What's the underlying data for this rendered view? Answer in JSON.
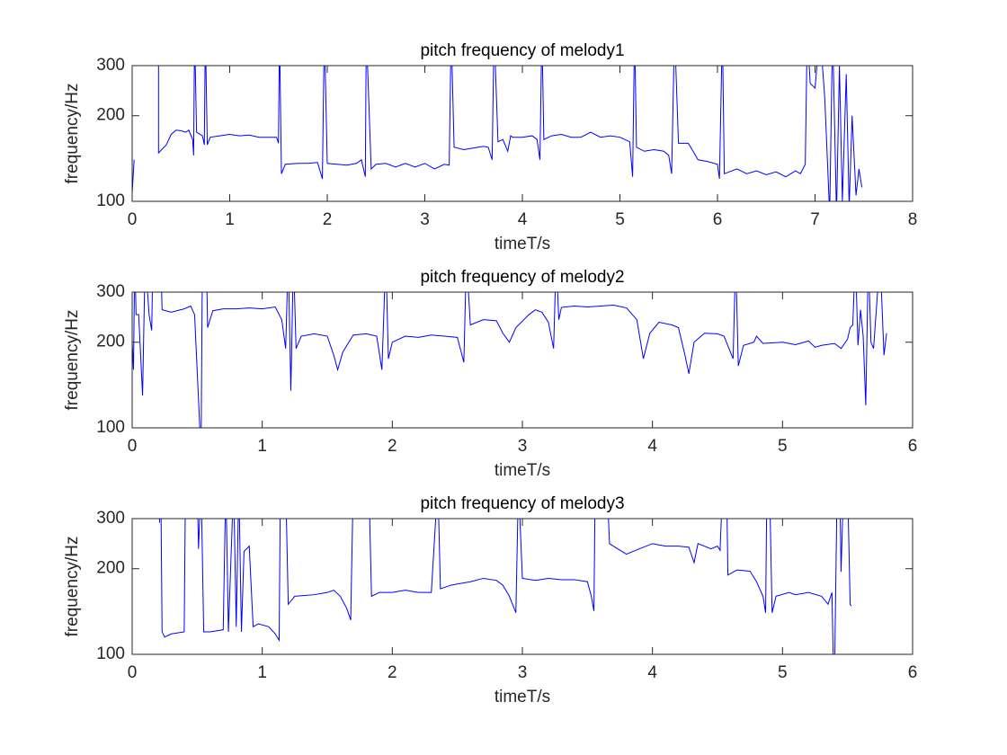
{
  "chart_data": [
    {
      "type": "line",
      "title": "pitch frequency of melody1",
      "x_label": "timeT/s",
      "y_label": "frequency/Hz",
      "xlim": [
        0,
        8
      ],
      "xticks": [
        0,
        1,
        2,
        3,
        4,
        5,
        6,
        7,
        8
      ],
      "ylim": [
        100,
        300
      ],
      "yticks": [
        100,
        200,
        300
      ],
      "yscale": "log",
      "color": "#0000ff",
      "x": [
        0,
        0.02,
        0.1,
        0.27,
        0.27,
        0.35,
        0.4,
        0.45,
        0.5,
        0.55,
        0.58,
        0.62,
        0.63,
        0.64,
        0.66,
        0.72,
        0.74,
        0.75,
        0.77,
        0.8,
        0.9,
        1.0,
        1.1,
        1.2,
        1.3,
        1.4,
        1.48,
        1.5,
        1.51,
        1.53,
        1.57,
        1.7,
        1.8,
        1.9,
        1.95,
        1.97,
        2.0,
        2.1,
        2.2,
        2.3,
        2.35,
        2.39,
        2.4,
        2.45,
        2.5,
        2.6,
        2.7,
        2.8,
        2.9,
        3.0,
        3.1,
        3.2,
        3.25,
        3.27,
        3.3,
        3.4,
        3.5,
        3.6,
        3.65,
        3.69,
        3.71,
        3.75,
        3.8,
        3.85,
        3.88,
        3.9,
        4.0,
        4.1,
        4.15,
        4.18,
        4.2,
        4.22,
        4.3,
        4.4,
        4.5,
        4.6,
        4.7,
        4.8,
        4.9,
        5.0,
        5.1,
        5.13,
        5.15,
        5.17,
        5.25,
        5.35,
        5.45,
        5.5,
        5.53,
        5.56,
        5.6,
        5.7,
        5.75,
        5.8,
        5.9,
        6.0,
        6.02,
        6.05,
        6.07,
        6.2,
        6.3,
        6.4,
        6.5,
        6.6,
        6.7,
        6.8,
        6.85,
        6.9,
        6.92,
        6.95,
        7.0,
        7.05,
        7.1,
        7.15,
        7.18,
        7.22,
        7.25,
        7.28,
        7.32,
        7.35,
        7.38,
        7.42,
        7.45,
        7.48
      ],
      "values": [
        107,
        140,
        null,
        400,
        148,
        158,
        172,
        178,
        177,
        175,
        178,
        165,
        145,
        400,
        175,
        170,
        158,
        400,
        158,
        168,
        170,
        172,
        170,
        171,
        168,
        168,
        168,
        160,
        400,
        125,
        135,
        136,
        136,
        137,
        120,
        400,
        136,
        135,
        134,
        136,
        140,
        122,
        400,
        130,
        135,
        136,
        132,
        136,
        132,
        136,
        130,
        135,
        134,
        400,
        155,
        152,
        154,
        156,
        155,
        140,
        400,
        162,
        165,
        150,
        170,
        168,
        168,
        170,
        165,
        140,
        400,
        165,
        170,
        172,
        168,
        168,
        175,
        168,
        170,
        168,
        162,
        122,
        400,
        155,
        150,
        152,
        150,
        145,
        125,
        400,
        160,
        160,
        150,
        140,
        138,
        135,
        120,
        400,
        125,
        130,
        125,
        128,
        124,
        127,
        122,
        128,
        125,
        135,
        400,
        260,
        250,
        400,
        230,
        90,
        400,
        90,
        300,
        100,
        280,
        95,
        200,
        105,
        130,
        112
      ]
    },
    {
      "type": "line",
      "title": "pitch frequency of melody2",
      "x_label": "timeT/s",
      "y_label": "frequency/Hz",
      "xlim": [
        0,
        6
      ],
      "xticks": [
        0,
        1,
        2,
        3,
        4,
        5,
        6
      ],
      "ylim": [
        100,
        300
      ],
      "yticks": [
        100,
        200,
        300
      ],
      "yscale": "log",
      "color": "#0000ff",
      "x": [
        0,
        0.01,
        0.02,
        0.03,
        0.05,
        0.08,
        0.1,
        0.13,
        0.15,
        0.16,
        0.22,
        0.23,
        0.3,
        0.4,
        0.45,
        0.48,
        0.52,
        0.53,
        0.54,
        0.57,
        0.58,
        0.62,
        0.7,
        0.8,
        0.9,
        1.0,
        1.1,
        1.15,
        1.18,
        1.2,
        1.22,
        1.24,
        1.26,
        1.3,
        1.4,
        1.5,
        1.55,
        1.58,
        1.62,
        1.7,
        1.8,
        1.88,
        1.92,
        1.95,
        1.97,
        2.0,
        2.1,
        2.2,
        2.3,
        2.4,
        2.5,
        2.55,
        2.57,
        2.6,
        2.7,
        2.8,
        2.85,
        2.9,
        2.95,
        3.05,
        3.1,
        3.15,
        3.2,
        3.24,
        3.26,
        3.28,
        3.3,
        3.4,
        3.5,
        3.6,
        3.7,
        3.8,
        3.88,
        3.93,
        3.98,
        4.05,
        4.15,
        4.2,
        4.25,
        4.28,
        4.32,
        4.4,
        4.5,
        4.55,
        4.62,
        4.64,
        4.66,
        4.7,
        4.78,
        4.8,
        4.85,
        5.0,
        5.1,
        5.2,
        5.25,
        5.3,
        5.4,
        5.45,
        5.5,
        5.52,
        5.54,
        5.56,
        5.58,
        5.6,
        5.62,
        5.64,
        5.66,
        5.68,
        5.7,
        5.75,
        5.78,
        5.8
      ],
      "values": [
        200,
        160,
        400,
        250,
        250,
        130,
        400,
        250,
        220,
        400,
        400,
        260,
        255,
        262,
        268,
        250,
        100,
        85,
        400,
        400,
        225,
        258,
        262,
        262,
        264,
        262,
        266,
        240,
        190,
        400,
        135,
        400,
        190,
        210,
        214,
        210,
        180,
        160,
        185,
        212,
        214,
        210,
        160,
        400,
        175,
        200,
        210,
        208,
        212,
        210,
        208,
        170,
        400,
        230,
        240,
        238,
        215,
        200,
        225,
        250,
        260,
        255,
        235,
        190,
        400,
        240,
        265,
        268,
        266,
        268,
        270,
        264,
        240,
        175,
        215,
        235,
        230,
        225,
        180,
        155,
        200,
        215,
        214,
        210,
        175,
        400,
        165,
        195,
        200,
        210,
        198,
        200,
        196,
        202,
        192,
        195,
        198,
        190,
        205,
        225,
        230,
        400,
        195,
        260,
        210,
        120,
        400,
        200,
        190,
        400,
        180,
        215
      ]
    },
    {
      "type": "line",
      "title": "pitch frequency of melody3",
      "x_label": "timeT/s",
      "y_label": "frequency/Hz",
      "xlim": [
        0,
        6
      ],
      "xticks": [
        0,
        1,
        2,
        3,
        4,
        5,
        6
      ],
      "ylim": [
        100,
        300
      ],
      "yticks": [
        100,
        200,
        300
      ],
      "yscale": "log",
      "color": "#0000ff",
      "x": [
        0.21,
        0.22,
        0.23,
        0.25,
        0.3,
        0.4,
        0.41,
        0.5,
        0.51,
        0.53,
        0.55,
        0.6,
        0.7,
        0.72,
        0.74,
        0.78,
        0.8,
        0.82,
        0.84,
        0.86,
        0.9,
        0.93,
        0.97,
        1.05,
        1.1,
        1.13,
        1.14,
        1.18,
        1.2,
        1.25,
        1.4,
        1.5,
        1.55,
        1.6,
        1.65,
        1.68,
        1.7,
        1.82,
        1.84,
        1.9,
        2.0,
        2.1,
        2.2,
        2.3,
        2.35,
        2.37,
        2.45,
        2.6,
        2.7,
        2.8,
        2.85,
        2.9,
        2.95,
        2.97,
        3.0,
        3.1,
        3.2,
        3.3,
        3.4,
        3.5,
        3.53,
        3.55,
        3.56,
        3.65,
        3.67,
        3.7,
        3.8,
        3.9,
        4.0,
        4.1,
        4.2,
        4.28,
        4.32,
        4.35,
        4.45,
        4.5,
        4.52,
        4.54,
        4.57,
        4.58,
        4.65,
        4.75,
        4.8,
        4.85,
        4.87,
        4.88,
        4.9,
        4.92,
        4.95,
        5.05,
        5.1,
        5.2,
        5.3,
        5.35,
        5.38,
        5.39,
        5.4,
        5.42,
        5.44,
        5.45,
        5.47,
        5.5,
        5.52,
        5.53
      ],
      "values": [
        290,
        400,
        120,
        115,
        118,
        120,
        400,
        400,
        235,
        400,
        120,
        120,
        122,
        400,
        120,
        400,
        125,
        400,
        120,
        230,
        240,
        125,
        128,
        125,
        118,
        112,
        400,
        400,
        150,
        160,
        162,
        165,
        168,
        160,
        145,
        132,
        400,
        400,
        160,
        165,
        165,
        168,
        165,
        165,
        400,
        170,
        175,
        180,
        185,
        182,
        175,
        160,
        140,
        400,
        185,
        182,
        185,
        183,
        183,
        180,
        160,
        142,
        400,
        400,
        245,
        240,
        225,
        235,
        245,
        240,
        240,
        238,
        210,
        245,
        235,
        240,
        232,
        400,
        400,
        190,
        198,
        196,
        180,
        160,
        140,
        400,
        400,
        140,
        160,
        165,
        162,
        165,
        160,
        150,
        165,
        95,
        85,
        400,
        400,
        195,
        400,
        400,
        150,
        148
      ]
    }
  ]
}
